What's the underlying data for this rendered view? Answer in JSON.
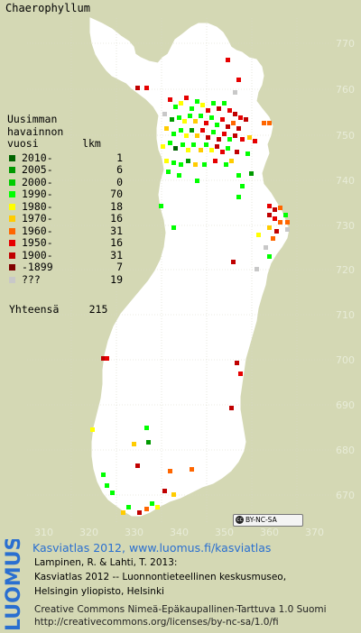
{
  "map": {
    "title": "Chaerophyllum",
    "y_ticks": [
      "770",
      "760",
      "750",
      "740",
      "730",
      "720",
      "710",
      "700",
      "690",
      "680",
      "670"
    ],
    "x_ticks": [
      "310",
      "320",
      "330",
      "340",
      "350",
      "360",
      "370"
    ]
  },
  "legend": {
    "header_lines": [
      "Uusimman",
      "havainnon",
      "vuosi       lkm"
    ],
    "items": [
      {
        "label": "2010-",
        "count": "1",
        "color": "#006400"
      },
      {
        "label": "2005-",
        "count": "6",
        "color": "#009900"
      },
      {
        "label": "2000-",
        "count": "0",
        "color": "#00cc00"
      },
      {
        "label": "1990-",
        "count": "70",
        "color": "#00ff00"
      },
      {
        "label": "1980-",
        "count": "18",
        "color": "#ffff00"
      },
      {
        "label": "1970-",
        "count": "16",
        "color": "#ffcc00"
      },
      {
        "label": "1960-",
        "count": "31",
        "color": "#ff6600"
      },
      {
        "label": "1950-",
        "count": "16",
        "color": "#e60000"
      },
      {
        "label": "1900-",
        "count": "31",
        "color": "#c00000"
      },
      {
        "label": "-1899",
        "count": "7",
        "color": "#800000"
      },
      {
        "label": "???",
        "count": "19",
        "color": "#c8c8c8"
      }
    ],
    "total_label": "Yhteensä",
    "total_count": "215"
  },
  "license_badge": {
    "text": "BY-NC-SA"
  },
  "branding": {
    "logo_text": "LUOMUS"
  },
  "footer": {
    "atlas_link": "Kasviatlas 2012, www.luomus.fi/kasviatlas",
    "citation_1": "Lampinen, R. & Lahti, T. 2013:",
    "citation_2": "Kasviatlas 2012 -- Luonnontieteellinen keskusmuseo,",
    "citation_3": "Helsingin yliopisto, Helsinki",
    "license_1": "Creative Commons Nimeä-Epäkaupallinen-Tarttuva 1.0 Suomi",
    "license_2": "http://creativecommons.org/licenses/by-nc-sa/1.0/fi"
  }
}
